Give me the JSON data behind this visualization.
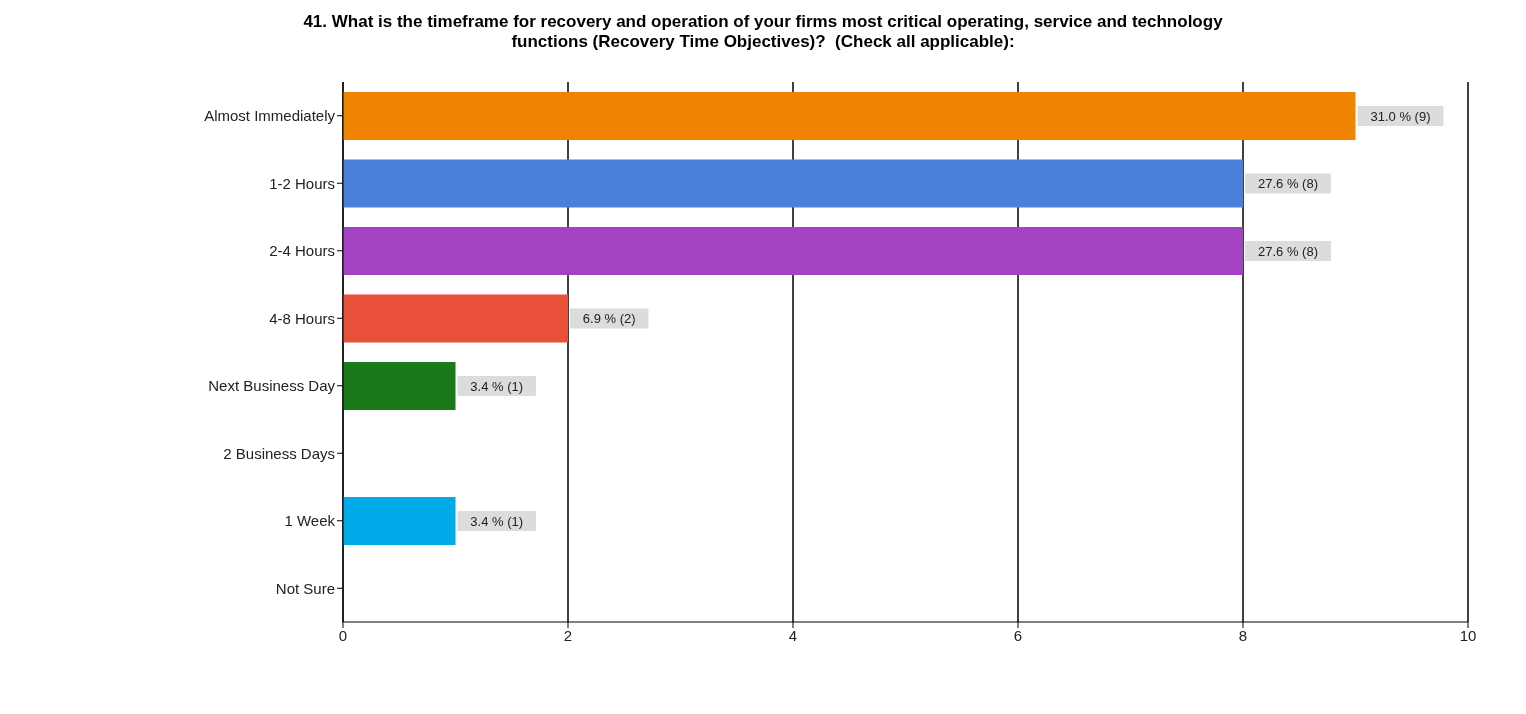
{
  "chart_data": {
    "type": "bar",
    "orientation": "horizontal",
    "title": "41. What is the timeframe for recovery and operation of your firms most critical operating, service and technology functions (Recovery Time Objectives)?  (Check all applicable):",
    "categories": [
      "Almost Immediately",
      "1-2 Hours",
      "2-4 Hours",
      "4-8 Hours",
      "Next Business Day",
      "2 Business Days",
      "1 Week",
      "Not Sure"
    ],
    "values": [
      9,
      8,
      8,
      2,
      1,
      0,
      1,
      0
    ],
    "colors": [
      "#f08400",
      "#4a80dc",
      "#a442c4",
      "#e8503a",
      "#1a7a1a",
      "#888888",
      "#00aae8",
      "#888888"
    ],
    "value_labels": [
      "31.0 % (9)",
      "27.6 % (8)",
      "27.6 % (8)",
      "6.9 % (2)",
      "3.4 % (1)",
      null,
      "3.4 % (1)",
      null
    ],
    "xlim": [
      0,
      10
    ],
    "xticks": [
      0,
      2,
      4,
      6,
      8,
      10
    ],
    "grid": "x"
  }
}
